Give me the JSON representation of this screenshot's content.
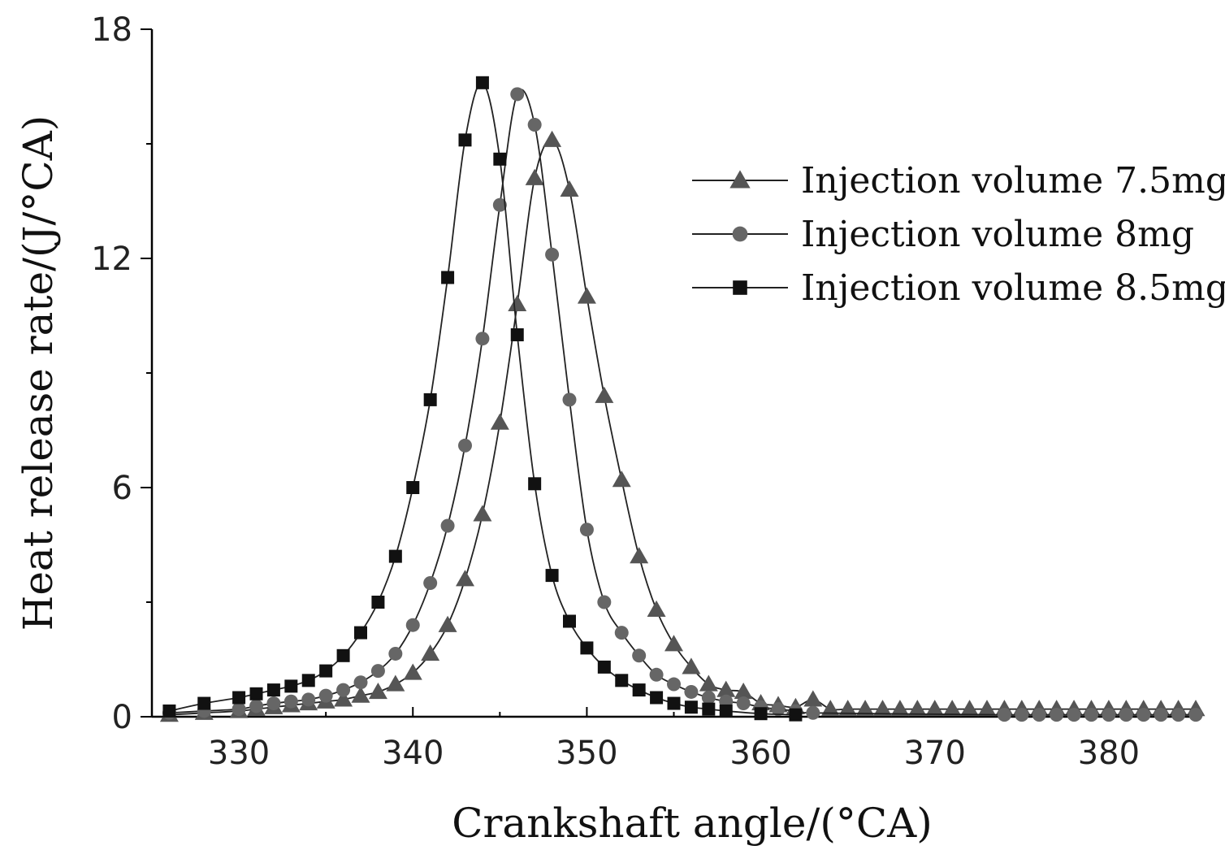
{
  "chart_data": {
    "type": "line",
    "xlabel": "Crankshaft angle/(°CA)",
    "ylabel": "Heat release rate/(J/°CA)",
    "xlim": [
      325,
      385
    ],
    "ylim": [
      0,
      18
    ],
    "x_ticks": [
      330,
      340,
      350,
      360,
      370,
      380
    ],
    "y_ticks": [
      0,
      6,
      12,
      18
    ],
    "x_tick_labels": [
      "330",
      "340",
      "350",
      "360",
      "370",
      "380"
    ],
    "y_tick_labels": [
      "0",
      "6",
      "12",
      "18"
    ],
    "grid": false,
    "legend_position": "top-right",
    "series": [
      {
        "name": "Injection volume 7.5mg",
        "marker": "triangle",
        "color": "#555555",
        "x": [
          326,
          328,
          330,
          331,
          332,
          333,
          334,
          335,
          336,
          337,
          338,
          339,
          340,
          341,
          342,
          343,
          344,
          345,
          346,
          347,
          348,
          349,
          350,
          351,
          352,
          353,
          354,
          355,
          356,
          357,
          358,
          359,
          360,
          361,
          362,
          363,
          364,
          365,
          366,
          367,
          368,
          369,
          370,
          371,
          372,
          373,
          374,
          375,
          376,
          377,
          378,
          379,
          380,
          381,
          382,
          383,
          384,
          385
        ],
        "y": [
          0.05,
          0.1,
          0.15,
          0.2,
          0.25,
          0.3,
          0.35,
          0.4,
          0.45,
          0.55,
          0.65,
          0.85,
          1.15,
          1.65,
          2.4,
          3.6,
          5.3,
          7.7,
          10.8,
          14.1,
          15.1,
          13.8,
          11.0,
          8.4,
          6.2,
          4.2,
          2.8,
          1.9,
          1.3,
          0.85,
          0.7,
          0.65,
          0.35,
          0.3,
          0.25,
          0.45,
          0.2,
          0.2,
          0.2,
          0.2,
          0.2,
          0.2,
          0.2,
          0.2,
          0.2,
          0.2,
          0.2,
          0.2,
          0.2,
          0.2,
          0.2,
          0.2,
          0.2,
          0.2,
          0.2,
          0.2,
          0.2,
          0.2
        ]
      },
      {
        "name": "Injection volume 8mg",
        "marker": "circle",
        "color": "#666666",
        "x": [
          326,
          328,
          330,
          331,
          332,
          333,
          334,
          335,
          336,
          337,
          338,
          339,
          340,
          341,
          342,
          343,
          344,
          345,
          346,
          347,
          348,
          349,
          350,
          351,
          352,
          353,
          354,
          355,
          356,
          357,
          358,
          359,
          360,
          361,
          362,
          363,
          374,
          375,
          376,
          377,
          378,
          379,
          380,
          381,
          382,
          383,
          384,
          385
        ],
        "y": [
          0.1,
          0.15,
          0.2,
          0.28,
          0.35,
          0.4,
          0.45,
          0.55,
          0.7,
          0.9,
          1.2,
          1.65,
          2.4,
          3.5,
          5.0,
          7.1,
          9.9,
          13.4,
          16.3,
          15.5,
          12.1,
          8.3,
          4.9,
          3.0,
          2.2,
          1.6,
          1.1,
          0.85,
          0.65,
          0.5,
          0.4,
          0.35,
          0.25,
          0.2,
          0.15,
          0.1,
          0.05,
          0.05,
          0.05,
          0.05,
          0.05,
          0.05,
          0.05,
          0.05,
          0.05,
          0.05,
          0.05,
          0.05
        ]
      },
      {
        "name": "Injection volume 8.5mg",
        "marker": "square",
        "color": "#111111",
        "x": [
          326,
          328,
          330,
          331,
          332,
          333,
          334,
          335,
          336,
          337,
          338,
          339,
          340,
          341,
          342,
          343,
          344,
          345,
          346,
          347,
          348,
          349,
          350,
          351,
          352,
          353,
          354,
          355,
          356,
          357,
          358,
          360,
          362
        ],
        "y": [
          0.15,
          0.35,
          0.5,
          0.6,
          0.7,
          0.8,
          0.95,
          1.2,
          1.6,
          2.2,
          3.0,
          4.2,
          6.0,
          8.3,
          11.5,
          15.1,
          16.6,
          14.6,
          10.0,
          6.1,
          3.7,
          2.5,
          1.8,
          1.3,
          0.95,
          0.7,
          0.5,
          0.35,
          0.25,
          0.2,
          0.15,
          0.08,
          0.05
        ]
      }
    ]
  }
}
